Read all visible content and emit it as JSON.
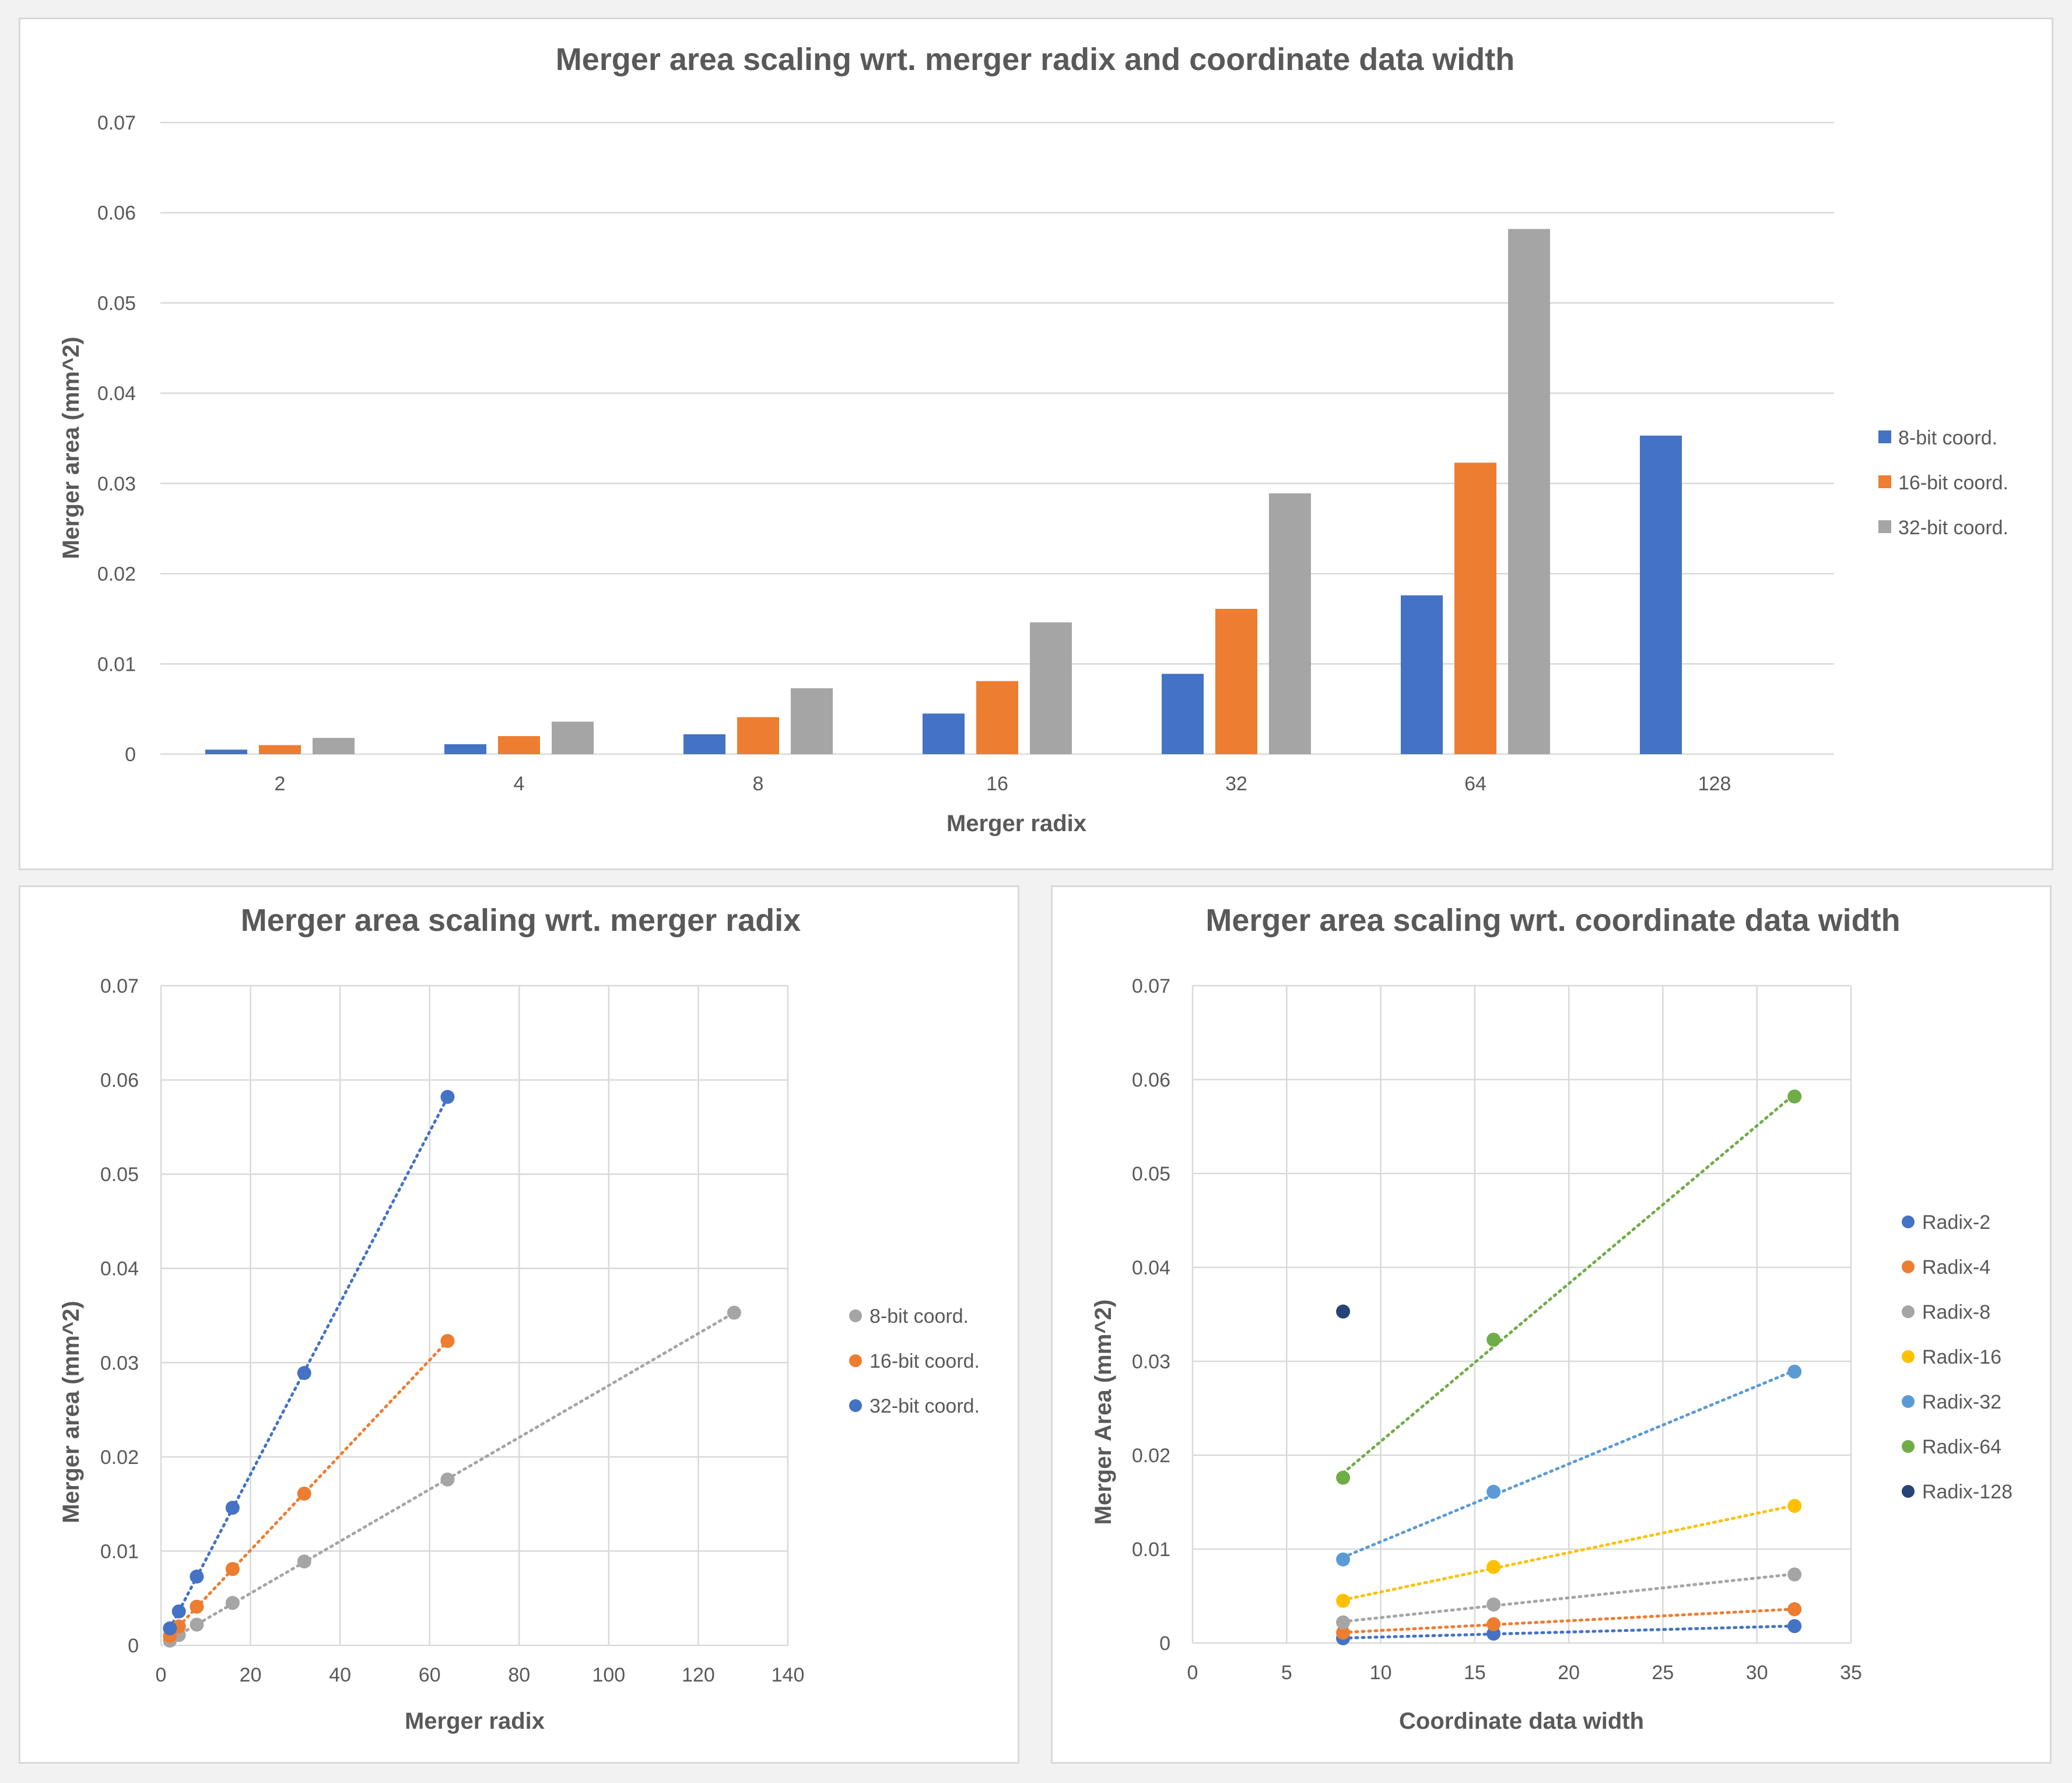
{
  "chart_data": [
    {
      "type": "bar",
      "title": "Merger area scaling wrt. merger radix and coordinate data width",
      "xlabel": "Merger radix",
      "ylabel": "Merger area (mm^2)",
      "categories": [
        "2",
        "4",
        "8",
        "16",
        "32",
        "64",
        "128"
      ],
      "ylim": [
        0,
        0.07
      ],
      "yticks": [
        "0",
        "0.01",
        "0.02",
        "0.03",
        "0.04",
        "0.05",
        "0.06",
        "0.07"
      ],
      "grid": true,
      "legend_position": "right",
      "series": [
        {
          "name": "8-bit coord.",
          "color": "#4472c4",
          "values": [
            0.0005,
            0.0011,
            0.0022,
            0.0045,
            0.0089,
            0.0176,
            0.0353
          ]
        },
        {
          "name": "16-bit coord.",
          "color": "#ed7d31",
          "values": [
            0.001,
            0.002,
            0.0041,
            0.0081,
            0.0161,
            0.0323,
            null
          ]
        },
        {
          "name": "32-bit coord.",
          "color": "#a5a5a5",
          "values": [
            0.0018,
            0.0036,
            0.0073,
            0.0146,
            0.0289,
            0.0582,
            null
          ]
        }
      ]
    },
    {
      "type": "scatter",
      "title": "Merger area scaling wrt. merger radix",
      "xlabel": "Merger radix",
      "ylabel": "Merger area (mm^2)",
      "xlim": [
        0,
        140
      ],
      "ylim": [
        0,
        0.07
      ],
      "xticks": [
        "0",
        "20",
        "40",
        "60",
        "80",
        "100",
        "120",
        "140"
      ],
      "yticks": [
        "0",
        "0.01",
        "0.02",
        "0.03",
        "0.04",
        "0.05",
        "0.06",
        "0.07"
      ],
      "grid": true,
      "trendlines": "dotted",
      "legend_position": "right",
      "series": [
        {
          "name": "8-bit coord.",
          "color": "#a5a5a5",
          "x": [
            2,
            4,
            8,
            16,
            32,
            64,
            128
          ],
          "y": [
            0.0005,
            0.0011,
            0.0022,
            0.0045,
            0.0089,
            0.0176,
            0.0353
          ]
        },
        {
          "name": "16-bit coord.",
          "color": "#ed7d31",
          "x": [
            2,
            4,
            8,
            16,
            32,
            64
          ],
          "y": [
            0.001,
            0.002,
            0.0041,
            0.0081,
            0.0161,
            0.0323
          ]
        },
        {
          "name": "32-bit coord.",
          "color": "#4472c4",
          "x": [
            2,
            4,
            8,
            16,
            32,
            64
          ],
          "y": [
            0.0018,
            0.0036,
            0.0073,
            0.0146,
            0.0289,
            0.0582
          ]
        }
      ]
    },
    {
      "type": "scatter",
      "title": "Merger area scaling wrt. coordinate data width",
      "xlabel": "Coordinate data width",
      "ylabel": "Merger Area (mm^2)",
      "xlim": [
        0,
        35
      ],
      "ylim": [
        0,
        0.07
      ],
      "xticks": [
        "0",
        "5",
        "10",
        "15",
        "20",
        "25",
        "30",
        "35"
      ],
      "yticks": [
        "0",
        "0.01",
        "0.02",
        "0.03",
        "0.04",
        "0.05",
        "0.06",
        "0.07"
      ],
      "grid": true,
      "trendlines": "dotted",
      "legend_position": "right",
      "series": [
        {
          "name": "Radix-2",
          "color": "#4472c4",
          "x": [
            8,
            16,
            32
          ],
          "y": [
            0.0005,
            0.001,
            0.0018
          ]
        },
        {
          "name": "Radix-4",
          "color": "#ed7d31",
          "x": [
            8,
            16,
            32
          ],
          "y": [
            0.0011,
            0.002,
            0.0036
          ]
        },
        {
          "name": "Radix-8",
          "color": "#a5a5a5",
          "x": [
            8,
            16,
            32
          ],
          "y": [
            0.0022,
            0.0041,
            0.0073
          ]
        },
        {
          "name": "Radix-16",
          "color": "#ffc000",
          "x": [
            8,
            16,
            32
          ],
          "y": [
            0.0045,
            0.0081,
            0.0146
          ]
        },
        {
          "name": "Radix-32",
          "color": "#5b9bd5",
          "x": [
            8,
            16,
            32
          ],
          "y": [
            0.0089,
            0.0161,
            0.0289
          ]
        },
        {
          "name": "Radix-64",
          "color": "#70ad47",
          "x": [
            8,
            16,
            32
          ],
          "y": [
            0.0176,
            0.0323,
            0.0582
          ]
        },
        {
          "name": "Radix-128",
          "color": "#264478",
          "x": [
            8
          ],
          "y": [
            0.0353
          ]
        }
      ]
    }
  ]
}
